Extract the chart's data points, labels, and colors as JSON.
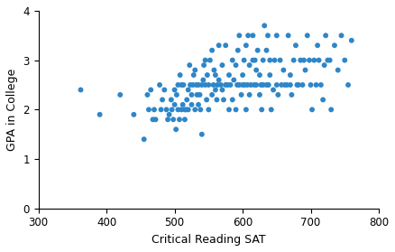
{
  "title": "",
  "xlabel": "Critical Reading SAT",
  "ylabel": "GPA in College",
  "xlim": [
    300,
    800
  ],
  "ylim": [
    0,
    4
  ],
  "xticks": [
    300,
    400,
    500,
    600,
    700,
    800
  ],
  "yticks": [
    0,
    1,
    2,
    3,
    4
  ],
  "dot_color": "#2e86c8",
  "dot_size": 18,
  "background_color": "#ffffff",
  "x": [
    362,
    390,
    420,
    440,
    455,
    460,
    462,
    465,
    468,
    470,
    472,
    478,
    480,
    482,
    485,
    488,
    490,
    492,
    495,
    496,
    498,
    500,
    500,
    502,
    503,
    505,
    505,
    507,
    508,
    510,
    510,
    512,
    513,
    515,
    515,
    517,
    518,
    520,
    520,
    522,
    523,
    525,
    525,
    527,
    528,
    530,
    530,
    532,
    533,
    535,
    535,
    537,
    538,
    540,
    540,
    542,
    543,
    545,
    545,
    547,
    548,
    550,
    550,
    552,
    555,
    555,
    557,
    558,
    560,
    560,
    562,
    563,
    565,
    565,
    568,
    570,
    570,
    572,
    575,
    575,
    578,
    580,
    580,
    582,
    585,
    585,
    587,
    590,
    590,
    592,
    593,
    595,
    595,
    598,
    600,
    600,
    602,
    603,
    605,
    605,
    607,
    608,
    610,
    610,
    612,
    615,
    615,
    617,
    618,
    620,
    620,
    622,
    625,
    625,
    627,
    628,
    630,
    630,
    632,
    635,
    635,
    637,
    638,
    640,
    640,
    642,
    645,
    647,
    650,
    650,
    652,
    655,
    657,
    660,
    662,
    665,
    667,
    670,
    670,
    672,
    675,
    678,
    680,
    682,
    685,
    688,
    690,
    692,
    695,
    698,
    700,
    702,
    705,
    708,
    710,
    712,
    715,
    718,
    720,
    722,
    725,
    728,
    730,
    735,
    740,
    745,
    750,
    755,
    760
  ],
  "y": [
    2.4,
    1.9,
    2.3,
    1.9,
    1.4,
    2.3,
    2.0,
    2.4,
    1.8,
    2.0,
    1.8,
    2.5,
    2.0,
    2.2,
    2.4,
    2.0,
    1.8,
    1.9,
    2.2,
    2.0,
    1.8,
    2.1,
    2.4,
    1.6,
    2.3,
    2.0,
    2.5,
    1.8,
    2.7,
    2.0,
    2.5,
    2.1,
    2.5,
    2.0,
    1.8,
    2.0,
    2.2,
    2.4,
    2.0,
    2.9,
    2.5,
    2.1,
    2.3,
    2.5,
    2.7,
    2.0,
    2.8,
    2.5,
    2.3,
    2.1,
    2.5,
    2.3,
    2.0,
    1.5,
    2.5,
    2.6,
    2.9,
    2.5,
    3.0,
    2.2,
    2.7,
    2.0,
    2.5,
    3.0,
    2.3,
    3.2,
    2.5,
    2.8,
    2.4,
    2.7,
    2.2,
    2.5,
    2.6,
    3.3,
    2.5,
    2.4,
    2.9,
    2.2,
    2.5,
    3.3,
    2.5,
    2.0,
    2.7,
    2.5,
    2.2,
    3.0,
    2.6,
    2.0,
    2.9,
    2.5,
    3.2,
    2.5,
    3.5,
    2.3,
    2.5,
    2.7,
    3.0,
    2.5,
    3.3,
    2.0,
    2.5,
    3.5,
    2.3,
    2.9,
    2.5,
    3.0,
    3.5,
    2.5,
    3.0,
    2.8,
    2.5,
    3.2,
    2.7,
    2.3,
    2.5,
    2.0,
    3.0,
    2.5,
    3.7,
    2.5,
    3.2,
    3.5,
    2.5,
    3.0,
    2.7,
    2.0,
    2.4,
    3.0,
    2.5,
    3.5,
    2.3,
    3.0,
    2.5,
    2.8,
    2.5,
    2.5,
    3.5,
    2.5,
    2.7,
    2.3,
    3.0,
    3.3,
    2.5,
    2.5,
    3.0,
    2.5,
    3.0,
    2.8,
    3.5,
    3.0,
    2.5,
    2.0,
    3.0,
    2.5,
    3.3,
    3.0,
    2.5,
    2.2,
    2.9,
    3.5,
    3.0,
    3.0,
    2.0,
    3.3,
    2.8,
    3.5,
    3.0,
    2.5,
    3.4
  ]
}
